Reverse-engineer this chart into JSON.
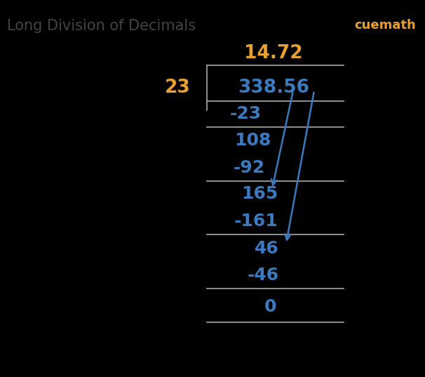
{
  "title": "Long Division of Decimals",
  "title_color": "#444444",
  "title_fontsize": 15,
  "background_color": "#000000",
  "divisor": "23",
  "dividend": "338.56",
  "quotient": "14.72",
  "blue_color": "#3a7abf",
  "orange_color": "#e8a030",
  "arrow_color": "#3a7abf",
  "line_color": "#aaaaaa",
  "cuemath_color": "#e8a030",
  "cuemath_text": "cuemath",
  "figsize": [
    6.06,
    5.37
  ],
  "dpi": 100
}
